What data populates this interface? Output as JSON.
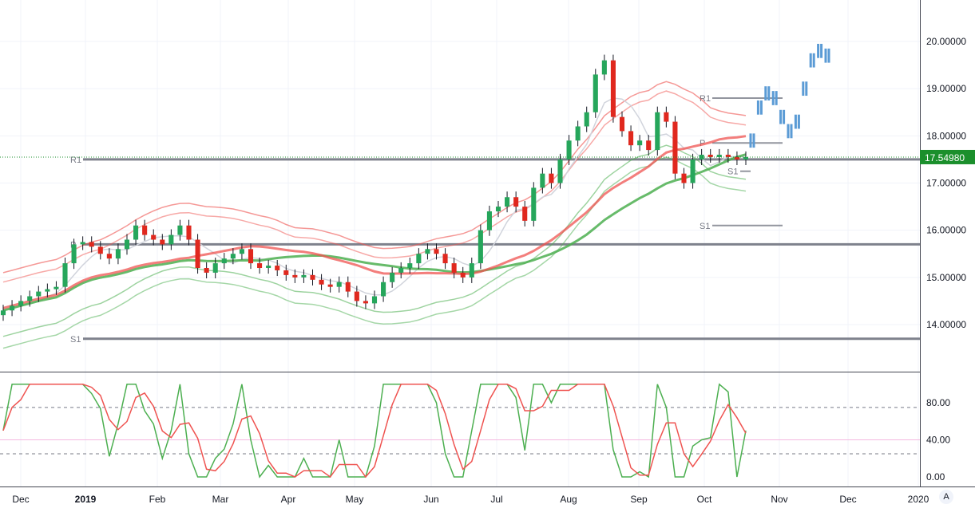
{
  "chart_data": [
    {
      "type": "candlestick",
      "title": "",
      "current_price": "17.54980",
      "y_range": [
        13.25,
        20.8
      ],
      "y_ticks": [
        "20.00000",
        "19.00000",
        "18.00000",
        "17.00000",
        "16.00000",
        "15.00000",
        "14.00000"
      ],
      "x_ticks": [
        "Dec",
        "2019",
        "Feb",
        "Mar",
        "Apr",
        "May",
        "Jun",
        "Jul",
        "Aug",
        "Sep",
        "Oct",
        "Nov",
        "Dec",
        "2020"
      ],
      "closes": [
        14.3,
        14.4,
        14.5,
        14.6,
        14.7,
        14.75,
        14.8,
        15.3,
        15.7,
        15.75,
        15.65,
        15.5,
        15.4,
        15.6,
        15.8,
        16.1,
        15.9,
        15.8,
        15.7,
        15.9,
        16.1,
        15.8,
        15.2,
        15.1,
        15.3,
        15.4,
        15.5,
        15.6,
        15.3,
        15.2,
        15.25,
        15.15,
        15.05,
        15.0,
        15.05,
        14.95,
        14.85,
        14.8,
        14.9,
        14.7,
        14.5,
        14.45,
        14.6,
        14.9,
        15.1,
        15.2,
        15.3,
        15.5,
        15.6,
        15.5,
        15.3,
        15.1,
        15.0,
        15.3,
        16.0,
        16.4,
        16.5,
        16.7,
        16.5,
        16.2,
        16.9,
        17.2,
        17.0,
        17.5,
        17.9,
        18.2,
        18.5,
        19.3,
        19.6,
        18.4,
        18.1,
        17.8,
        17.9,
        17.7,
        18.5,
        18.3,
        17.2,
        17.0,
        17.5,
        17.6,
        17.55,
        17.6,
        17.55,
        17.5,
        17.55
      ],
      "projection_closes": [
        17.9,
        18.6,
        18.9,
        18.8,
        18.4,
        18.1,
        18.3,
        19.0,
        19.6,
        19.8,
        19.7
      ],
      "pivots": [
        {
          "label": "R1",
          "value": 17.5
        },
        {
          "label": "P",
          "value": 15.7
        },
        {
          "label": "S1",
          "value": 13.7
        },
        {
          "label": "R1",
          "value": 18.8
        },
        {
          "label": "P",
          "value": 17.85
        },
        {
          "label": "S1",
          "value": 17.25
        },
        {
          "label": "S1",
          "value": 16.1
        }
      ],
      "series": [
        {
          "name": "",
          "color": "#ef5350"
        },
        {
          "name": "",
          "color": "#4caf50"
        },
        {
          "name": "",
          "color": "#5b9bd5"
        }
      ]
    },
    {
      "type": "line",
      "title": "",
      "y_range": [
        -5,
        110
      ],
      "y_ticks": [
        "80.00",
        "40.00",
        "0.00"
      ],
      "levels": [
        75,
        25
      ],
      "series": [
        {
          "name": "",
          "color": "#4caf50"
        },
        {
          "name": "",
          "color": "#ef5350"
        }
      ]
    }
  ],
  "ui": {
    "auto_label": "A"
  }
}
